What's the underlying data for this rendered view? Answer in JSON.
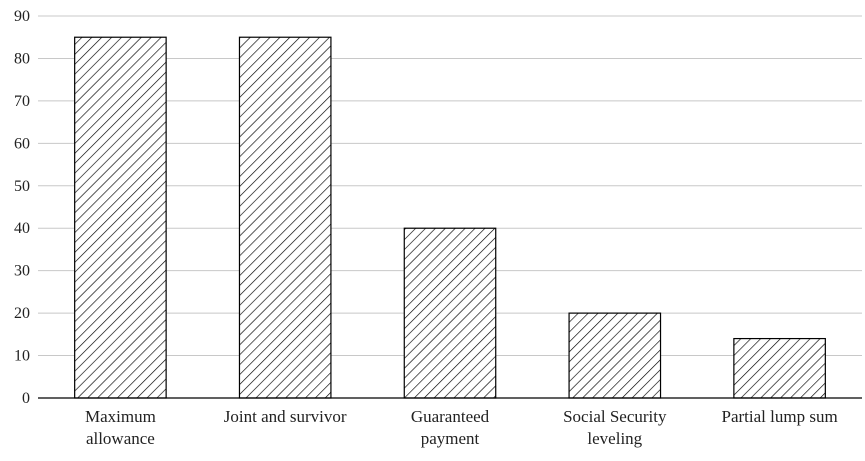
{
  "chart_data": {
    "type": "bar",
    "categories": [
      [
        "Maximum",
        "allowance"
      ],
      [
        "Joint and survivor"
      ],
      [
        "Guaranteed",
        "payment"
      ],
      [
        "Social Security",
        "leveling"
      ],
      [
        "Partial lump sum"
      ]
    ],
    "values": [
      85,
      85,
      40,
      20,
      14
    ],
    "ylim": [
      0,
      90
    ],
    "yticks": [
      0,
      10,
      20,
      30,
      40,
      50,
      60,
      70,
      80,
      90
    ],
    "grid": true,
    "legend": "none",
    "bar_pattern": "diagonal-hatch",
    "colors": {
      "bar_stroke": "#000000",
      "hatch": "#000000",
      "grid": "#c8c8c8",
      "axis": "#000000"
    }
  }
}
